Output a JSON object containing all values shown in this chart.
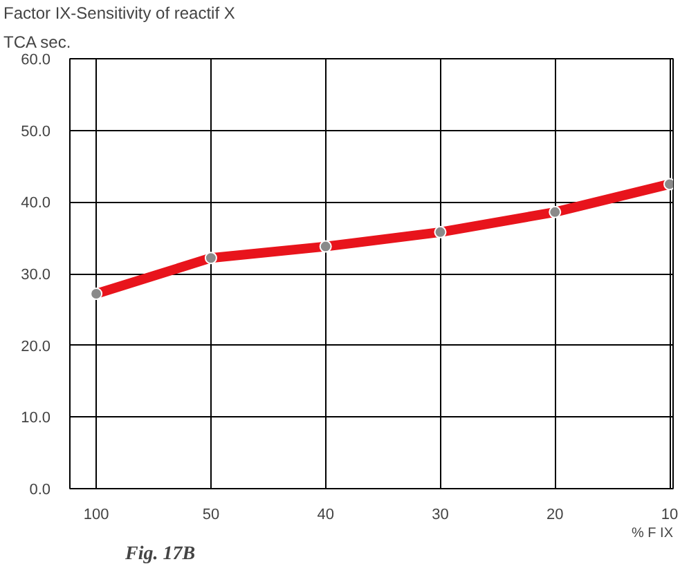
{
  "chart_data": {
    "type": "line",
    "title": "Factor IX-Sensitivity of reactif X",
    "ylabel": "TCA sec.",
    "xlabel": "% F IX",
    "annotations": [
      "Fig. 17B"
    ],
    "categories": [
      "100",
      "50",
      "40",
      "30",
      "20",
      "10"
    ],
    "series": [
      {
        "color": "#e8141c",
        "values": [
          27.2,
          32.2,
          33.8,
          35.8,
          38.6,
          42.5
        ]
      }
    ],
    "ylim": [
      0,
      60
    ],
    "yticks": [
      {
        "value": 0,
        "label": "0.0"
      },
      {
        "value": 10,
        "label": "10.0"
      },
      {
        "value": 20,
        "label": "20.0"
      },
      {
        "value": 30,
        "label": "30.0"
      },
      {
        "value": 40,
        "label": "40.0"
      },
      {
        "value": 50,
        "label": "50.0"
      },
      {
        "value": 60,
        "label": "60.0"
      }
    ],
    "grid": true,
    "marker": "circle",
    "line_style": "solid"
  }
}
